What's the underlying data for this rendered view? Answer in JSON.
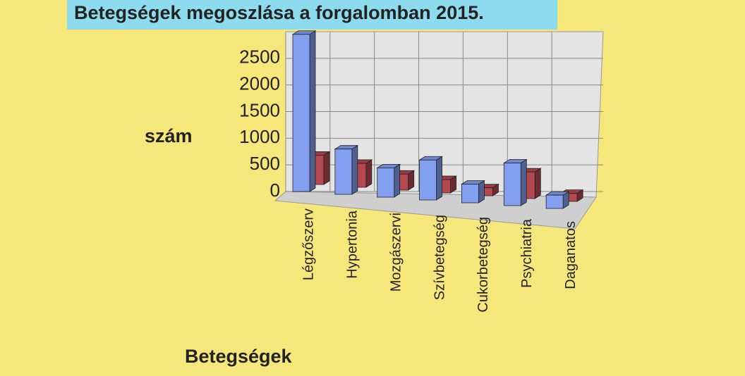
{
  "chart_data": {
    "type": "bar3d",
    "title": "Betegségek megoszlása a forgalomban 2015.",
    "ylabel": "szám",
    "xlabel": "Betegségek",
    "categories": [
      "Légzőszerv",
      "Hypertonia",
      "Mozgászervi",
      "Szívbetegség",
      "Cukorbetegség",
      "Psychiatria",
      "Daganatos"
    ],
    "series": [
      {
        "color": "#b5474f",
        "values": [
          550,
          450,
          300,
          250,
          150,
          500,
          150
        ]
      },
      {
        "color": "#829ff0",
        "values": [
          2950,
          850,
          550,
          750,
          350,
          800,
          250
        ]
      }
    ],
    "ylim": [
      0,
      3000
    ],
    "yticks": [
      0,
      500,
      1000,
      1500,
      2000,
      2500
    ],
    "grid": true
  }
}
